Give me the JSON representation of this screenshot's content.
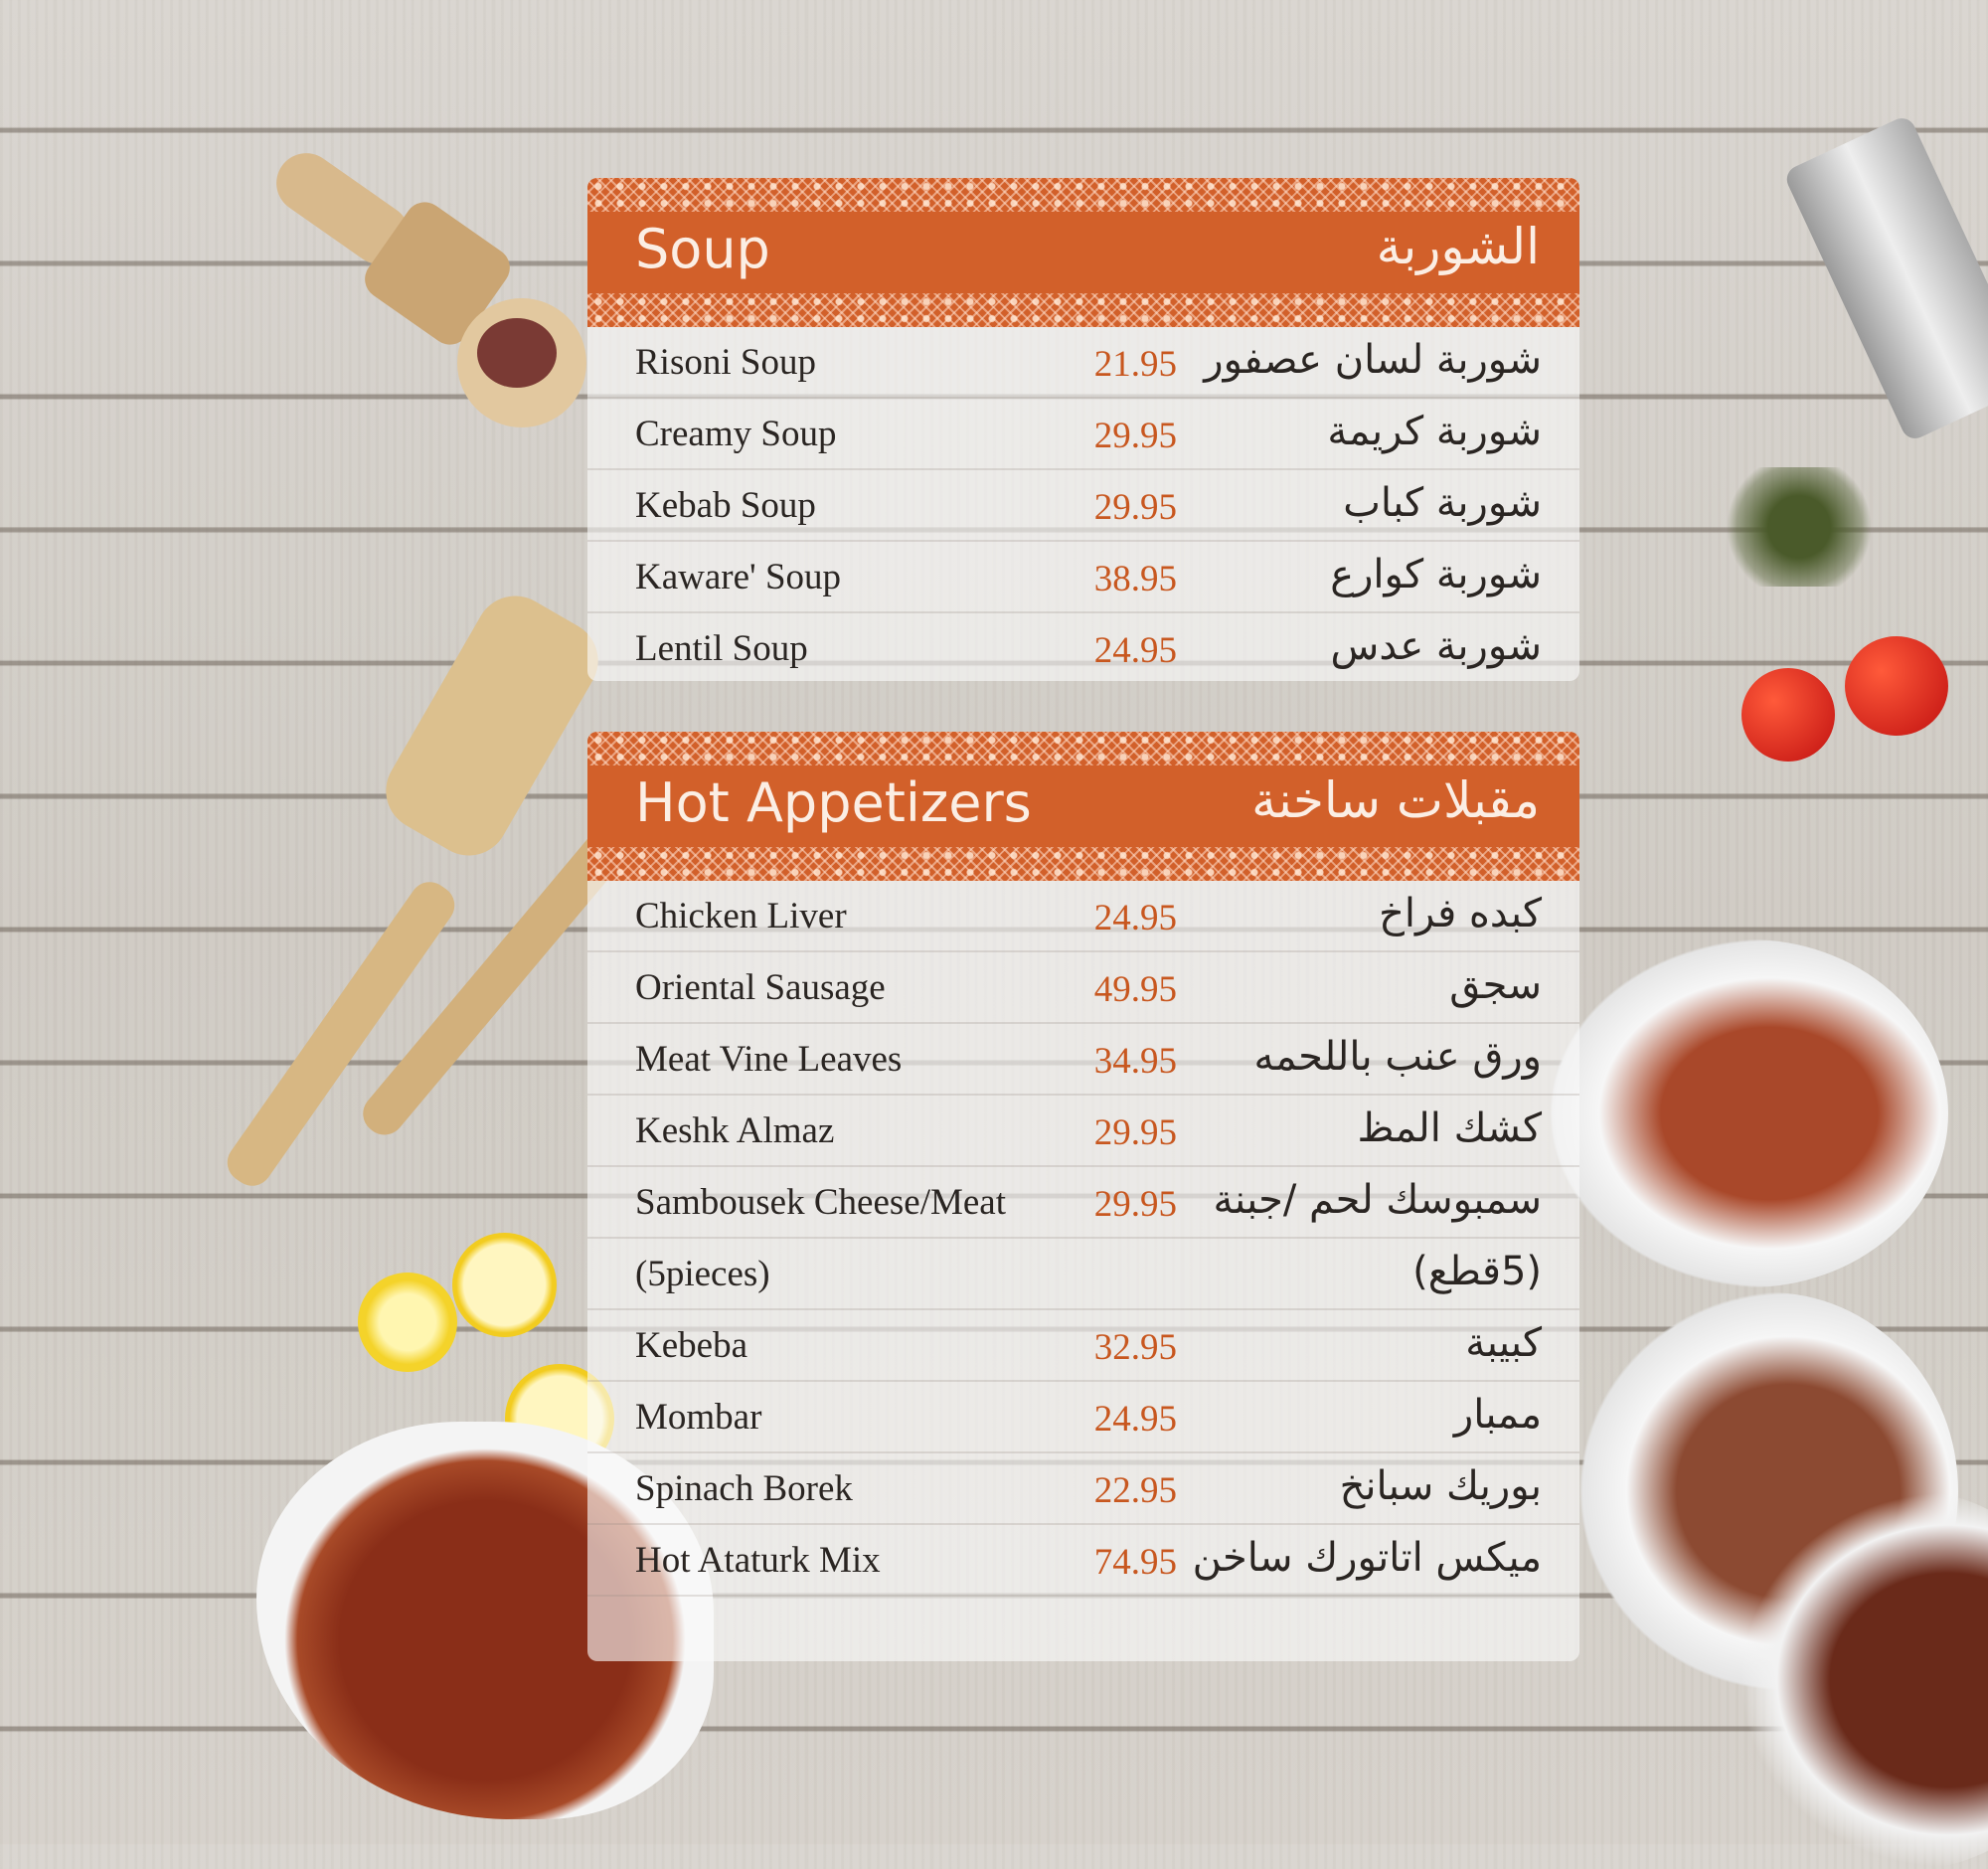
{
  "colors": {
    "accent": "#d2602a",
    "price": "#c8571f",
    "text": "#2a2522"
  },
  "sections": [
    {
      "title_en": "Soup",
      "title_ar": "الشوربة",
      "items": [
        {
          "en": "Risoni Soup",
          "price": "21.95",
          "ar": "شوربة لسان عصفور"
        },
        {
          "en": "Creamy Soup",
          "price": "29.95",
          "ar": "شوربة كريمة"
        },
        {
          "en": "Kebab Soup",
          "price": "29.95",
          "ar": "شوربة كباب"
        },
        {
          "en": "Kaware' Soup",
          "price": "38.95",
          "ar": "شوربة كوارع"
        },
        {
          "en": "Lentil Soup",
          "price": "24.95",
          "ar": "شوربة عدس"
        }
      ]
    },
    {
      "title_en": "Hot Appetizers",
      "title_ar": "مقبلات ساخنة",
      "items": [
        {
          "en": "Chicken Liver",
          "price": "24.95",
          "ar": "كبده فراخ"
        },
        {
          "en": "Oriental Sausage",
          "price": "49.95",
          "ar": "سجق"
        },
        {
          "en": "Meat Vine Leaves",
          "price": "34.95",
          "ar": "ورق عنب باللحمه"
        },
        {
          "en": "Keshk Almaz",
          "price": "29.95",
          "ar": "كشك المظ"
        },
        {
          "en": "Sambousek Cheese/Meat",
          "price": "29.95",
          "ar": "سمبوسك لحم /جبنة"
        },
        {
          "en": "(5pieces)",
          "price": "",
          "ar": "(5قطع)"
        },
        {
          "en": "Kebeba",
          "price": "32.95",
          "ar": "كبيبة"
        },
        {
          "en": "Mombar",
          "price": "24.95",
          "ar": "ممبار"
        },
        {
          "en": "Spinach Borek",
          "price": "22.95",
          "ar": "بوريك سبانخ"
        },
        {
          "en": "Hot Ataturk Mix",
          "price": "74.95",
          "ar": "ميكس اتاتورك ساخن"
        }
      ]
    }
  ]
}
